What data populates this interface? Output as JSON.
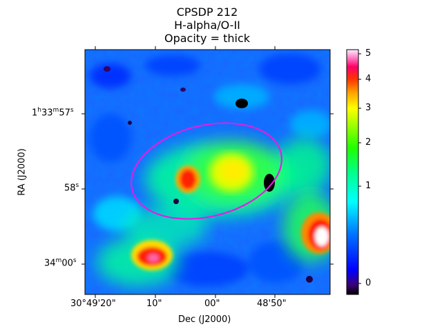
{
  "title_lines": [
    "CPSDP 212",
    "H-alpha/O-II",
    "Opacity = thick"
  ],
  "xlabel": "Dec (J2000)",
  "ylabel": "RA (J2000)",
  "x_ticks": [
    "30°49'20\"",
    "10\"",
    "00\"",
    "48'50\""
  ],
  "y_ticks": {
    "t1": {
      "base": "1",
      "h": "h",
      "mid": "33",
      "m": "m",
      "sec": "57",
      "s": "s"
    },
    "t2": {
      "sec": "58",
      "s": "s"
    },
    "t3": {
      "mid": "34",
      "m": "m",
      "sec": "00",
      "s": "s"
    }
  },
  "colorbar": {
    "ticks": [
      "5",
      "4",
      "3",
      "2",
      "1",
      "0"
    ],
    "colormap": "gist_ncar",
    "range": [
      0,
      5
    ]
  },
  "ellipse_color": "#e020e0",
  "image": {
    "description_colors": [
      "#0033ff",
      "#00ffff",
      "#00ff55",
      "#ffff00",
      "#ff0000",
      "#ffffff",
      "#000000"
    ]
  }
}
